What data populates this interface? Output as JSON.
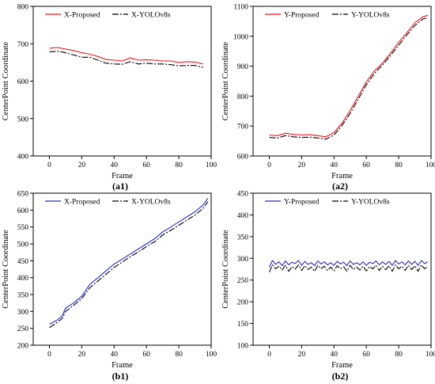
{
  "chart_data": [
    {
      "id": "a1",
      "type": "line",
      "panel_label": "(a1)",
      "xlabel": "Frame",
      "ylabel": "CenterPoint Coordinate",
      "xlim": [
        -10,
        100
      ],
      "ylim": [
        400,
        800
      ],
      "xticks": [
        0,
        20,
        40,
        60,
        80,
        100
      ],
      "yticks": [
        400,
        500,
        600,
        700,
        800
      ],
      "legend_position": "top-left",
      "series": [
        {
          "name": "X-Proposed",
          "color": "#e8141c",
          "dash": "solid",
          "x": [
            0,
            5,
            10,
            15,
            20,
            25,
            30,
            35,
            40,
            45,
            50,
            55,
            60,
            65,
            70,
            75,
            80,
            85,
            90,
            95
          ],
          "y": [
            688,
            690,
            686,
            682,
            676,
            672,
            666,
            658,
            656,
            654,
            662,
            656,
            657,
            656,
            654,
            654,
            650,
            652,
            651,
            646
          ]
        },
        {
          "name": "X-YOLOv8s",
          "color": "#000000",
          "dash": "dashdot",
          "x": [
            0,
            5,
            10,
            15,
            20,
            25,
            30,
            35,
            40,
            45,
            50,
            55,
            60,
            65,
            70,
            75,
            80,
            85,
            90,
            95
          ],
          "y": [
            678,
            680,
            676,
            670,
            664,
            664,
            656,
            648,
            646,
            645,
            652,
            646,
            648,
            646,
            646,
            644,
            641,
            642,
            642,
            637
          ]
        }
      ]
    },
    {
      "id": "a2",
      "type": "line",
      "panel_label": "(a2)",
      "xlabel": "Frame",
      "ylabel": "CenterPoint Coordinate",
      "xlim": [
        -10,
        100
      ],
      "ylim": [
        600,
        1100
      ],
      "xticks": [
        0,
        20,
        40,
        60,
        80,
        100
      ],
      "yticks": [
        600,
        700,
        800,
        900,
        1000,
        1100
      ],
      "legend_position": "top-left",
      "series": [
        {
          "name": "Y-Proposed",
          "color": "#e8141c",
          "dash": "solid",
          "x": [
            0,
            5,
            10,
            15,
            20,
            25,
            30,
            35,
            40,
            45,
            50,
            55,
            60,
            65,
            70,
            75,
            80,
            85,
            90,
            95,
            98
          ],
          "y": [
            670,
            668,
            676,
            672,
            670,
            671,
            668,
            664,
            678,
            710,
            752,
            800,
            848,
            884,
            910,
            944,
            980,
            1012,
            1045,
            1065,
            1070
          ]
        },
        {
          "name": "Y-YOLOv8s",
          "color": "#000000",
          "dash": "dashdot",
          "x": [
            0,
            5,
            10,
            15,
            20,
            25,
            30,
            35,
            40,
            45,
            50,
            55,
            60,
            65,
            70,
            75,
            80,
            85,
            90,
            95,
            98
          ],
          "y": [
            662,
            660,
            668,
            664,
            662,
            663,
            660,
            656,
            670,
            702,
            742,
            790,
            838,
            876,
            904,
            936,
            970,
            1004,
            1036,
            1058,
            1062
          ]
        }
      ]
    },
    {
      "id": "b1",
      "type": "line",
      "panel_label": "(b1)",
      "xlabel": "Frame",
      "ylabel": "CenterPoint Coordinate",
      "xlim": [
        -10,
        100
      ],
      "ylim": [
        200,
        650
      ],
      "xticks": [
        0,
        20,
        40,
        60,
        80,
        100
      ],
      "yticks": [
        200,
        250,
        300,
        350,
        400,
        450,
        500,
        550,
        600,
        650
      ],
      "legend_position": "top-left",
      "series": [
        {
          "name": "X-Proposed",
          "color": "#2828c8",
          "dash": "solid",
          "x": [
            0,
            5,
            8,
            10,
            15,
            20,
            25,
            30,
            35,
            40,
            45,
            50,
            55,
            60,
            65,
            70,
            75,
            80,
            85,
            90,
            95,
            98
          ],
          "y": [
            262,
            275,
            288,
            310,
            325,
            345,
            380,
            400,
            420,
            440,
            455,
            470,
            485,
            500,
            515,
            535,
            550,
            565,
            580,
            595,
            615,
            635
          ]
        },
        {
          "name": "X-YOLOv8s",
          "color": "#000000",
          "dash": "dashdot",
          "x": [
            0,
            5,
            8,
            10,
            15,
            20,
            25,
            30,
            35,
            40,
            45,
            50,
            55,
            60,
            65,
            70,
            75,
            80,
            85,
            90,
            95,
            98
          ],
          "y": [
            252,
            268,
            280,
            300,
            318,
            338,
            370,
            390,
            410,
            430,
            446,
            462,
            476,
            492,
            506,
            526,
            540,
            555,
            570,
            585,
            605,
            625
          ]
        }
      ]
    },
    {
      "id": "b2",
      "type": "line",
      "panel_label": "(b2)",
      "xlabel": "Frame",
      "ylabel": "CenterPoint Coordinate",
      "xlim": [
        -10,
        100
      ],
      "ylim": [
        100,
        450
      ],
      "xticks": [
        0,
        20,
        40,
        60,
        80,
        100
      ],
      "yticks": [
        100,
        150,
        200,
        250,
        300,
        350,
        400,
        450
      ],
      "legend_position": "top-left",
      "series": [
        {
          "name": "Y-Proposed",
          "color": "#2828c8",
          "dash": "solid",
          "x": [
            0,
            2,
            4,
            6,
            8,
            10,
            12,
            14,
            16,
            18,
            20,
            22,
            24,
            26,
            28,
            30,
            32,
            34,
            36,
            38,
            40,
            42,
            44,
            46,
            48,
            50,
            52,
            54,
            56,
            58,
            60,
            62,
            64,
            66,
            68,
            70,
            72,
            74,
            76,
            78,
            80,
            82,
            84,
            86,
            88,
            90,
            92,
            94,
            96,
            98
          ],
          "y": [
            280,
            295,
            286,
            292,
            283,
            294,
            285,
            291,
            288,
            295,
            284,
            293,
            286,
            290,
            283,
            294,
            287,
            292,
            285,
            290,
            284,
            293,
            287,
            291,
            283,
            294,
            286,
            290,
            285,
            292,
            284,
            291,
            288,
            294,
            285,
            292,
            286,
            293,
            284,
            295,
            287,
            292,
            285,
            294,
            286,
            293,
            284,
            295,
            288,
            292
          ]
        },
        {
          "name": "Y-YOLOv8s",
          "color": "#000000",
          "dash": "dashdot",
          "x": [
            0,
            2,
            4,
            6,
            8,
            10,
            12,
            14,
            16,
            18,
            20,
            22,
            24,
            26,
            28,
            30,
            32,
            34,
            36,
            38,
            40,
            42,
            44,
            46,
            48,
            50,
            52,
            54,
            56,
            58,
            60,
            62,
            64,
            66,
            68,
            70,
            72,
            74,
            76,
            78,
            80,
            82,
            84,
            86,
            88,
            90,
            92,
            94,
            96,
            98
          ],
          "y": [
            268,
            285,
            276,
            282,
            273,
            284,
            270,
            281,
            275,
            285,
            272,
            283,
            274,
            280,
            270,
            284,
            276,
            282,
            272,
            280,
            271,
            283,
            276,
            281,
            270,
            284,
            274,
            280,
            273,
            282,
            271,
            281,
            276,
            284,
            272,
            282,
            274,
            283,
            270,
            285,
            276,
            282,
            272,
            284,
            274,
            283,
            270,
            285,
            276,
            282
          ]
        }
      ]
    }
  ]
}
